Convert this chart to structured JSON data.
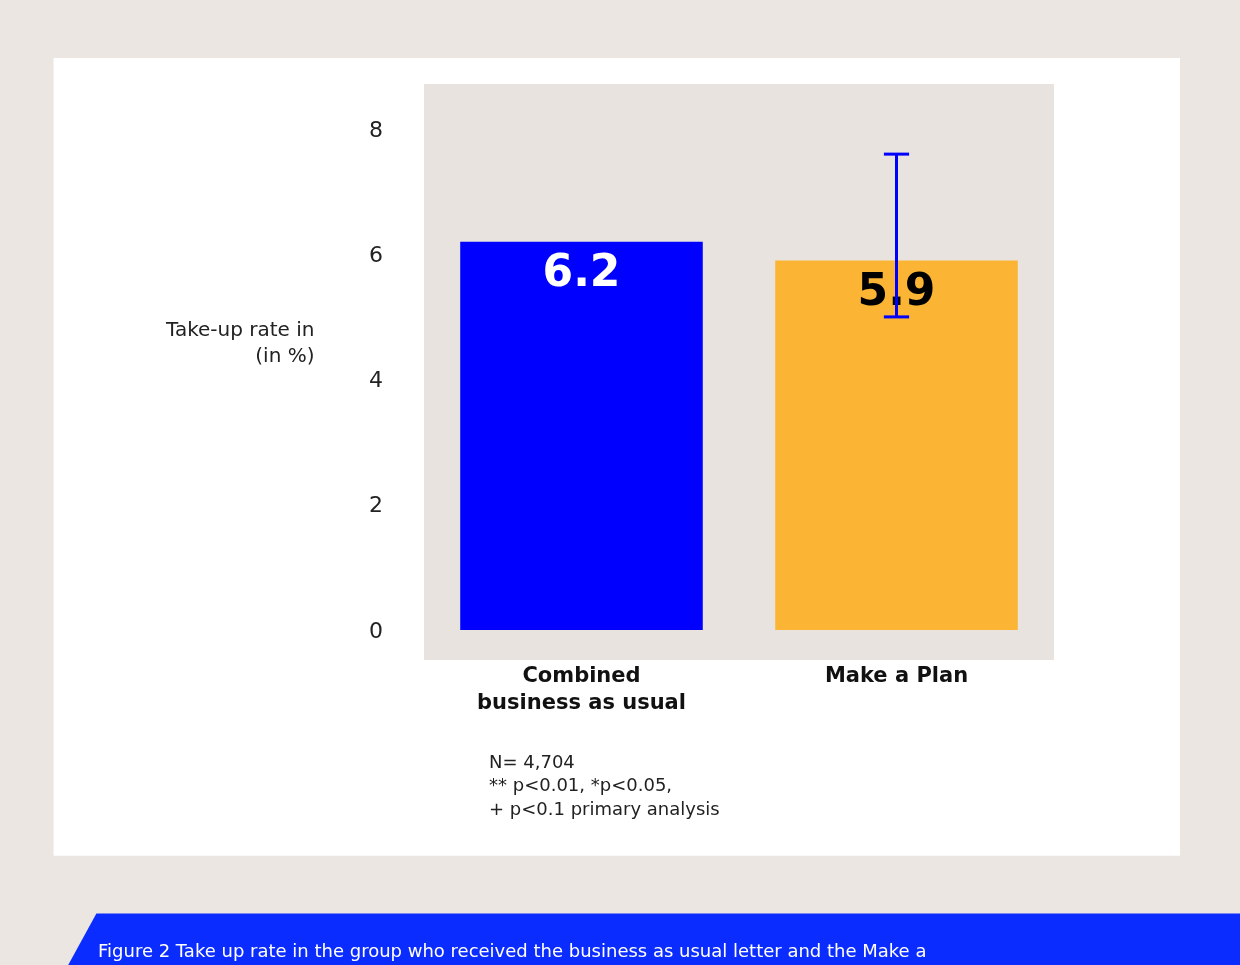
{
  "chart_data": {
    "type": "bar",
    "ylabel": "Take-up rate in\n(in %)",
    "categories": [
      "Combined\nbusiness as usual",
      "Make a Plan"
    ],
    "values": [
      6.2,
      5.9
    ],
    "colors": [
      "#0000ff",
      "#fbb433"
    ],
    "errors": [
      null,
      [
        5.0,
        7.6
      ]
    ],
    "data_labels": true,
    "ylim": [
      -0.48,
      8.72
    ],
    "yticks": [
      0,
      2,
      4,
      6,
      8
    ],
    "grid": false,
    "legend": false,
    "annotations": [
      "N= 4,704\n** p<0.01, *p<0.05,\n+ p<0.1 primary analysis",
      "Figure 2 Take up rate in the group who received the business as usual letter and the Make a"
    ]
  }
}
